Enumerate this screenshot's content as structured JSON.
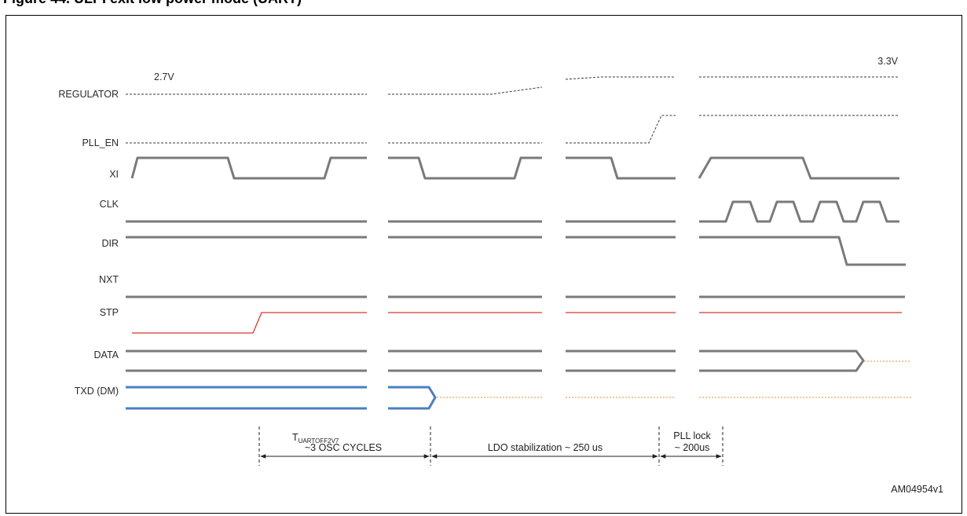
{
  "figure": {
    "header": "Figure 44. ULPI exit low power mode (UART)",
    "id": "AM04954v1"
  },
  "signals": [
    "REGULATOR",
    "PLL_EN",
    "XI",
    "CLK",
    "DIR",
    "NXT",
    "STP",
    "DATA",
    "TXD (DM)"
  ],
  "voltages": {
    "start": "2.7V",
    "end": "3.3V"
  },
  "intervals": [
    {
      "label": "T",
      "subscript": "UARTOFF2V7",
      "line2": "~3 OSC CYCLES"
    },
    {
      "label": "LDO stabilization ~ 250 us"
    },
    {
      "label": "PLL lock",
      "line2": "~ 200us"
    }
  ],
  "colors": {
    "signal": "#7a7a7a",
    "stp": "#d23a2a",
    "txd": "#4a7fc1",
    "undriven": "#f3b37a"
  }
}
